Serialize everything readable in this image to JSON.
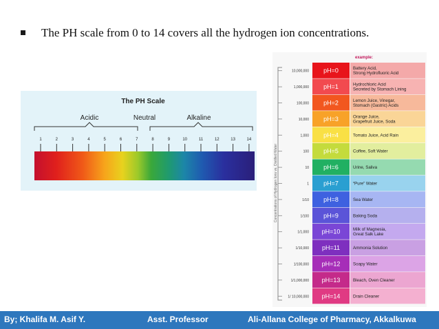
{
  "bullet": {
    "text": "The PH scale from 0 to 14 covers all the hydrogen ion concentrations."
  },
  "left_scale": {
    "title": "The PH Scale",
    "acidic": "Acidic",
    "neutral": "Neutral",
    "alkaline": "Alkaline",
    "numbers": [
      "1",
      "2",
      "3",
      "4",
      "5",
      "6",
      "7",
      "8",
      "9",
      "10",
      "11",
      "12",
      "13",
      "14"
    ]
  },
  "right_scale": {
    "example_label": "example:",
    "axis_label": "Concentrations of Hydrogen Ions vs. Distilled Water",
    "rows": [
      {
        "conc": "10,000,000",
        "ph": "pH=0",
        "example": "Battery Acid,\nStrong Hydrofluoric Acid",
        "ph_color": "#e8141b",
        "ex_color": "#f4a9a9",
        "ph_text": "#ffffff"
      },
      {
        "conc": "1,000,000",
        "ph": "pH=1",
        "example": "Hydrochloric Acid\nSecreted by Stomach Lining",
        "ph_color": "#f24a4f",
        "ex_color": "#f7b3b2",
        "ph_text": "#ffffff"
      },
      {
        "conc": "100,000",
        "ph": "pH=2",
        "example": "Lemon Juice, Vinegar,\nStomach (Gastric) Acids",
        "ph_color": "#f2571f",
        "ex_color": "#f7b99b",
        "ph_text": "#ffffff"
      },
      {
        "conc": "10,000",
        "ph": "pH=3",
        "example": "Orange Juice,\nGrapefruit Juice, Soda",
        "ph_color": "#f8a228",
        "ex_color": "#fad597",
        "ph_text": "#ffffff"
      },
      {
        "conc": "1,000",
        "ph": "pH=4",
        "example": "Tomato Juice, Acid Rain",
        "ph_color": "#f9e045",
        "ex_color": "#fbef9e",
        "ph_text": "#ffffff"
      },
      {
        "conc": "100",
        "ph": "pH=5",
        "example": "Coffee, Soft Water",
        "ph_color": "#c4db3c",
        "ex_color": "#e2ee9e",
        "ph_text": "#ffffff"
      },
      {
        "conc": "10",
        "ph": "pH=6",
        "example": "Urine, Saliva",
        "ph_color": "#21b062",
        "ex_color": "#95dab0",
        "ph_text": "#ffffff"
      },
      {
        "conc": "1",
        "ph": "pH=7",
        "example": "“Pure” Water",
        "ph_color": "#2a9fd1",
        "ex_color": "#99d3ee",
        "ph_text": "#ffffff"
      },
      {
        "conc": "1/10",
        "ph": "pH=8",
        "example": "Sea Water",
        "ph_color": "#3e61e0",
        "ex_color": "#a7b6f3",
        "ph_text": "#ffffff"
      },
      {
        "conc": "1/100",
        "ph": "pH=9",
        "example": "Baking Soda",
        "ph_color": "#5b54d8",
        "ex_color": "#b5b0ee",
        "ph_text": "#ffffff"
      },
      {
        "conc": "1/1,000",
        "ph": "pH=10",
        "example": "Milk of Magnesia,\nGreat Salk Lake",
        "ph_color": "#7a46d6",
        "ex_color": "#c4a9ef",
        "ph_text": "#ffffff"
      },
      {
        "conc": "1/10,000",
        "ph": "pH=11",
        "example": "Ammonia Solution",
        "ph_color": "#7e2fbf",
        "ex_color": "#c9a0e3",
        "ph_text": "#ffffff"
      },
      {
        "conc": "1/100,000",
        "ph": "pH=12",
        "example": "Soapy Water",
        "ph_color": "#a62eb8",
        "ex_color": "#dca4e6",
        "ph_text": "#ffffff"
      },
      {
        "conc": "1/1,000,000",
        "ph": "pH=13",
        "example": "Bleach, Oven Cleaner",
        "ph_color": "#c42a8a",
        "ex_color": "#eca6d1",
        "ph_text": "#ffffff"
      },
      {
        "conc": "1/ 10,000,000",
        "ph": "pH=14",
        "example": "Drain Cleaner",
        "ph_color": "#e03a83",
        "ex_color": "#f4b0d0",
        "ph_text": "#ffffff"
      }
    ]
  },
  "footer": {
    "author": "By; Khalifa M. Asif   Y.",
    "role": "Asst. Professor",
    "college": "Ali-Allana College of Pharmacy, Akkalkuwa"
  }
}
